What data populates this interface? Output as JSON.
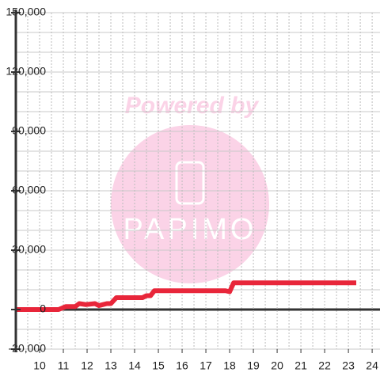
{
  "chart_data": {
    "type": "line",
    "x": [
      9,
      10.3,
      10.8,
      11.1,
      11.5,
      11.67,
      11.95,
      12.33,
      12.5,
      12.83,
      13.0,
      13.23,
      14.33,
      14.5,
      14.67,
      14.83,
      17.83,
      18.0,
      18.17,
      23.33
    ],
    "series": [
      {
        "color": "#e8263a",
        "values": [
          0,
          0,
          0,
          1500,
          1500,
          3000,
          2500,
          3000,
          2000,
          3000,
          3000,
          6000,
          6000,
          7000,
          7000,
          9500,
          9500,
          9000,
          13500,
          13500
        ]
      }
    ],
    "xlim": [
      9,
      24.33
    ],
    "xticks": [
      10,
      11,
      12,
      13,
      14,
      15,
      16,
      17,
      18,
      19,
      20,
      21,
      22,
      23,
      24
    ],
    "xminor": [
      9.5,
      10.5,
      11.5,
      12.5,
      13.5,
      14.5,
      15.5,
      16.5,
      17.5,
      18.5,
      19.5,
      20.5,
      21.5,
      22.5,
      23.5
    ],
    "ylim": [
      -20000,
      150000
    ],
    "yticks": [
      {
        "value": -20000,
        "label": "-20,000"
      },
      0,
      {
        "value": 30000,
        "label": "30,000"
      },
      {
        "value": 60000,
        "label": "60,000"
      },
      {
        "value": 90000,
        "label": "90,000"
      },
      {
        "value": 120000,
        "label": "120,000"
      },
      {
        "value": 150000,
        "label": "150,000"
      }
    ],
    "yminor": [
      -10000,
      10000,
      20000,
      40000,
      50000,
      70000,
      80000,
      100000,
      110000,
      130000,
      140000
    ],
    "grid": true,
    "watermark": {
      "top": "Powered by",
      "logo": "PAPIMO"
    }
  }
}
